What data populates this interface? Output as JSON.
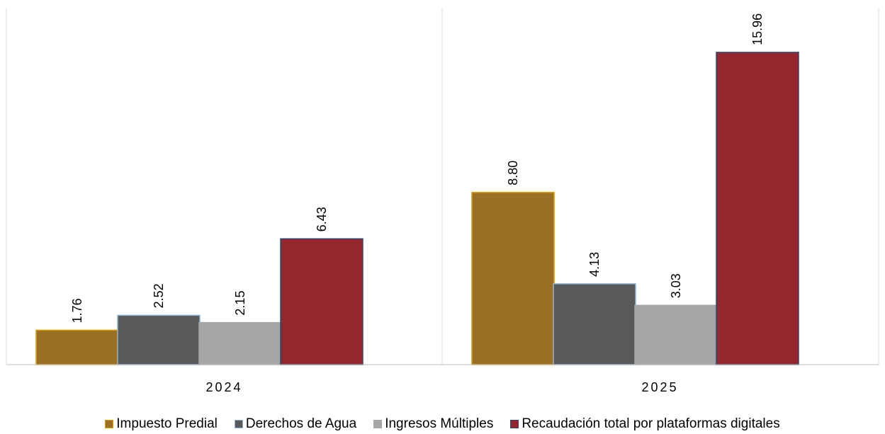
{
  "chart_data": {
    "type": "bar",
    "categories": [
      "2024",
      "2025"
    ],
    "series": [
      {
        "name": "Impuesto Predial",
        "values": [
          1.76,
          8.8
        ],
        "labels": [
          "1.76",
          "8.80"
        ],
        "color": "#9a7027",
        "border": "#e39b00"
      },
      {
        "name": "Derechos de Agua",
        "values": [
          2.52,
          4.13
        ],
        "labels": [
          "2.52",
          "4.13"
        ],
        "color": "#58595b",
        "border": "#8fb4d6"
      },
      {
        "name": "Ingresos Múltiples",
        "values": [
          2.15,
          3.03
        ],
        "labels": [
          "2.15",
          "3.03"
        ],
        "color": "#a6a6a6",
        "border": "#a6a6a6"
      },
      {
        "name": "Recaudación total por plataformas digitales",
        "values": [
          6.43,
          15.96
        ],
        "labels": [
          "6.43",
          "15.96"
        ],
        "color": "#96262e",
        "border": "#2b4a73"
      }
    ],
    "title": "",
    "xlabel": "",
    "ylabel": "",
    "ylim": [
      0,
      18.2
    ],
    "grid": false,
    "legend_position": "bottom"
  }
}
